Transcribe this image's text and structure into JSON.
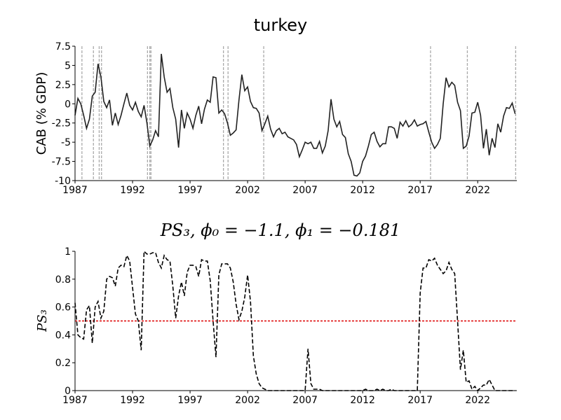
{
  "chart_data": [
    {
      "type": "line",
      "title": "turkey",
      "ylabel": "CAB (% GDP)",
      "xlim": [
        1987,
        2025.4
      ],
      "xticks": [
        1987,
        1992,
        1997,
        2002,
        2007,
        2012,
        2017,
        2022
      ],
      "ylim": [
        -10,
        7.5
      ],
      "yticks": [
        -10,
        -7.5,
        -5,
        -2.5,
        0,
        2.5,
        5,
        7.5
      ],
      "vlines": [
        1987.6,
        1988.6,
        1989.1,
        1989.3,
        1993.3,
        1993.5,
        1993.6,
        1999.9,
        2000.3,
        2003.4,
        2017.9,
        2021.1,
        2025.3
      ],
      "vline_color": "#aaaaaa",
      "x": [
        1987,
        1987.25,
        1987.5,
        1987.75,
        1988,
        1988.25,
        1988.5,
        1988.75,
        1989,
        1989.25,
        1989.5,
        1989.75,
        1990,
        1990.25,
        1990.5,
        1990.75,
        1991,
        1991.25,
        1991.5,
        1991.75,
        1992,
        1992.25,
        1992.5,
        1992.75,
        1993,
        1993.25,
        1993.5,
        1993.75,
        1994,
        1994.25,
        1994.5,
        1994.75,
        1995,
        1995.25,
        1995.5,
        1995.75,
        1996,
        1996.25,
        1996.5,
        1996.75,
        1997,
        1997.25,
        1997.5,
        1997.75,
        1998,
        1998.25,
        1998.5,
        1998.75,
        1999,
        1999.25,
        1999.5,
        1999.75,
        2000,
        2000.25,
        2000.5,
        2000.75,
        2001,
        2001.25,
        2001.5,
        2001.75,
        2002,
        2002.25,
        2002.5,
        2002.75,
        2003,
        2003.25,
        2003.5,
        2003.75,
        2004,
        2004.25,
        2004.5,
        2004.75,
        2005,
        2005.25,
        2005.5,
        2005.75,
        2006,
        2006.25,
        2006.5,
        2006.75,
        2007,
        2007.25,
        2007.5,
        2007.75,
        2008,
        2008.25,
        2008.5,
        2008.75,
        2009,
        2009.25,
        2009.5,
        2009.75,
        2010,
        2010.25,
        2010.5,
        2010.75,
        2011,
        2011.25,
        2011.5,
        2011.75,
        2012,
        2012.25,
        2012.5,
        2012.75,
        2013,
        2013.25,
        2013.5,
        2013.75,
        2014,
        2014.25,
        2014.5,
        2014.75,
        2015,
        2015.25,
        2015.5,
        2015.75,
        2016,
        2016.25,
        2016.5,
        2016.75,
        2017,
        2017.25,
        2017.5,
        2017.75,
        2018,
        2018.25,
        2018.5,
        2018.75,
        2019,
        2019.25,
        2019.5,
        2019.75,
        2020,
        2020.25,
        2020.5,
        2020.75,
        2021,
        2021.25,
        2021.5,
        2021.75,
        2022,
        2022.25,
        2022.5,
        2022.75,
        2023,
        2023.25,
        2023.5,
        2023.75,
        2024,
        2024.25,
        2024.5,
        2024.75,
        2025,
        2025.25
      ],
      "series": [
        {
          "color": "#222222",
          "dash": false,
          "values": [
            -1.5,
            0.7,
            0,
            -1.5,
            -3.2,
            -2,
            1,
            1.5,
            5.2,
            3.5,
            0.3,
            -0.5,
            0.5,
            -2.8,
            -1.2,
            -2.7,
            -1.5,
            0,
            1.4,
            -0.2,
            -0.8,
            0.2,
            -1,
            -1.7,
            -0.2,
            -2.5,
            -5.5,
            -4.7,
            -3.5,
            -4.3,
            6.5,
            3.5,
            1.5,
            2,
            -0.5,
            -2,
            -5.7,
            -0.8,
            -3.2,
            -1.2,
            -2,
            -3.2,
            -1.5,
            -0.3,
            -2.6,
            -0.7,
            0.5,
            0.2,
            3.5,
            3.4,
            -1.2,
            -0.8,
            -1.3,
            -2.5,
            -4.1,
            -3.8,
            -3.4,
            0.5,
            3.8,
            1.7,
            2.2,
            0.3,
            -0.5,
            -0.6,
            -1.2,
            -3.5,
            -2.6,
            -1.6,
            -3.3,
            -4.3,
            -3.5,
            -3.2,
            -3.9,
            -3.7,
            -4.3,
            -4.5,
            -4.7,
            -5.3,
            -6.9,
            -6,
            -5,
            -5.2,
            -5,
            -5.8,
            -5.8,
            -4.9,
            -6.4,
            -5.5,
            -3.5,
            0.6,
            -2,
            -3,
            -2.3,
            -4,
            -4.4,
            -6.5,
            -7.5,
            -9.3,
            -9.4,
            -9,
            -7.5,
            -6.8,
            -5.5,
            -4,
            -3.7,
            -4.9,
            -5.6,
            -5.2,
            -5.2,
            -3,
            -3,
            -3.2,
            -4.5,
            -2.4,
            -2.9,
            -2.2,
            -3,
            -2.7,
            -2.1,
            -2.9,
            -2.7,
            -2.6,
            -2.3,
            -3.7,
            -5,
            -5.8,
            -5.3,
            -4.5,
            0,
            3.4,
            2.2,
            2.8,
            2.4,
            0.2,
            -0.9,
            -5.8,
            -5.5,
            -4.2,
            -1.2,
            -1.1,
            0.2,
            -1.5,
            -5.8,
            -3.3,
            -6.7,
            -4.5,
            -5.7,
            -2.6,
            -3.7,
            -1.6,
            -0.5,
            -0.6,
            0.1,
            -1.3
          ]
        }
      ]
    },
    {
      "type": "line",
      "title": "PS₃, ϕ₀ = −1.1, ϕ₁ = −0.181",
      "ylabel": "PS₃",
      "xlim": [
        1987,
        2025.4
      ],
      "xticks": [
        1987,
        1992,
        1997,
        2002,
        2007,
        2012,
        2017,
        2022
      ],
      "ylim": [
        0,
        1
      ],
      "yticks": [
        0,
        0.2,
        0.4,
        0.6,
        0.8,
        1
      ],
      "hline": 0.5,
      "hline_color": "#dd0000",
      "x": [
        1987,
        1987.25,
        1987.5,
        1987.75,
        1988,
        1988.25,
        1988.5,
        1988.75,
        1989,
        1989.25,
        1989.5,
        1989.75,
        1990,
        1990.25,
        1990.5,
        1990.75,
        1991,
        1991.25,
        1991.5,
        1991.75,
        1992,
        1992.25,
        1992.5,
        1992.75,
        1993,
        1993.25,
        1993.5,
        1993.75,
        1994,
        1994.25,
        1994.5,
        1994.75,
        1995,
        1995.25,
        1995.5,
        1995.75,
        1996,
        1996.25,
        1996.5,
        1996.75,
        1997,
        1997.25,
        1997.5,
        1997.75,
        1998,
        1998.25,
        1998.5,
        1998.75,
        1999,
        1999.25,
        1999.5,
        1999.75,
        2000,
        2000.25,
        2000.5,
        2000.75,
        2001,
        2001.25,
        2001.5,
        2001.75,
        2002,
        2002.25,
        2002.5,
        2002.75,
        2003,
        2003.25,
        2003.5,
        2003.75,
        2004,
        2004.25,
        2004.5,
        2004.75,
        2005,
        2005.25,
        2005.5,
        2005.75,
        2006,
        2006.25,
        2006.5,
        2006.75,
        2007,
        2007.25,
        2007.5,
        2007.75,
        2008,
        2008.25,
        2008.5,
        2008.75,
        2009,
        2009.25,
        2009.5,
        2009.75,
        2010,
        2010.25,
        2010.5,
        2010.75,
        2011,
        2011.25,
        2011.5,
        2011.75,
        2012,
        2012.25,
        2012.5,
        2012.75,
        2013,
        2013.25,
        2013.5,
        2013.75,
        2014,
        2014.25,
        2014.5,
        2014.75,
        2015,
        2015.25,
        2015.5,
        2015.75,
        2016,
        2016.25,
        2016.5,
        2016.75,
        2017,
        2017.25,
        2017.5,
        2017.75,
        2018,
        2018.25,
        2018.5,
        2018.75,
        2019,
        2019.25,
        2019.5,
        2019.75,
        2020,
        2020.25,
        2020.5,
        2020.75,
        2021,
        2021.25,
        2021.5,
        2021.75,
        2022,
        2022.25,
        2022.5,
        2022.75,
        2023,
        2023.25,
        2023.5,
        2023.75,
        2024,
        2024.25,
        2024.5,
        2024.75,
        2025,
        2025.25
      ],
      "series": [
        {
          "color": "#000000",
          "dash": true,
          "values": [
            0.63,
            0.4,
            0.38,
            0.37,
            0.58,
            0.61,
            0.34,
            0.6,
            0.64,
            0.52,
            0.57,
            0.8,
            0.82,
            0.81,
            0.75,
            0.88,
            0.9,
            0.89,
            0.97,
            0.93,
            0.74,
            0.55,
            0.5,
            0.29,
            1,
            0.98,
            0.98,
            0.99,
            0.99,
            0.92,
            0.88,
            0.97,
            0.94,
            0.93,
            0.75,
            0.52,
            0.68,
            0.78,
            0.68,
            0.85,
            0.9,
            0.9,
            0.89,
            0.82,
            0.94,
            0.93,
            0.93,
            0.79,
            0.5,
            0.24,
            0.83,
            0.91,
            0.91,
            0.91,
            0.88,
            0.78,
            0.62,
            0.51,
            0.57,
            0.67,
            0.83,
            0.64,
            0.25,
            0.12,
            0.05,
            0.02,
            0.01,
            0,
            0,
            0,
            0,
            0,
            0,
            0,
            0,
            0,
            0,
            0,
            0,
            0,
            0,
            0.3,
            0.05,
            0.01,
            0.01,
            0.01,
            0,
            0,
            0,
            0,
            0,
            0,
            0,
            0,
            0,
            0,
            0,
            0,
            0,
            0,
            0,
            0.01,
            0,
            0,
            0,
            0.01,
            0,
            0.01,
            0,
            0,
            0.01,
            0,
            0,
            0,
            0,
            0,
            0,
            0,
            0,
            0,
            0.7,
            0.88,
            0.88,
            0.94,
            0.93,
            0.95,
            0.9,
            0.87,
            0.84,
            0.86,
            0.92,
            0.87,
            0.84,
            0.5,
            0.15,
            0.29,
            0.06,
            0.07,
            0.01,
            0.03,
            0,
            0.02,
            0.04,
            0.04,
            0.08,
            0.04,
            0,
            0,
            0,
            0,
            0,
            0,
            0,
            0
          ]
        }
      ]
    }
  ]
}
